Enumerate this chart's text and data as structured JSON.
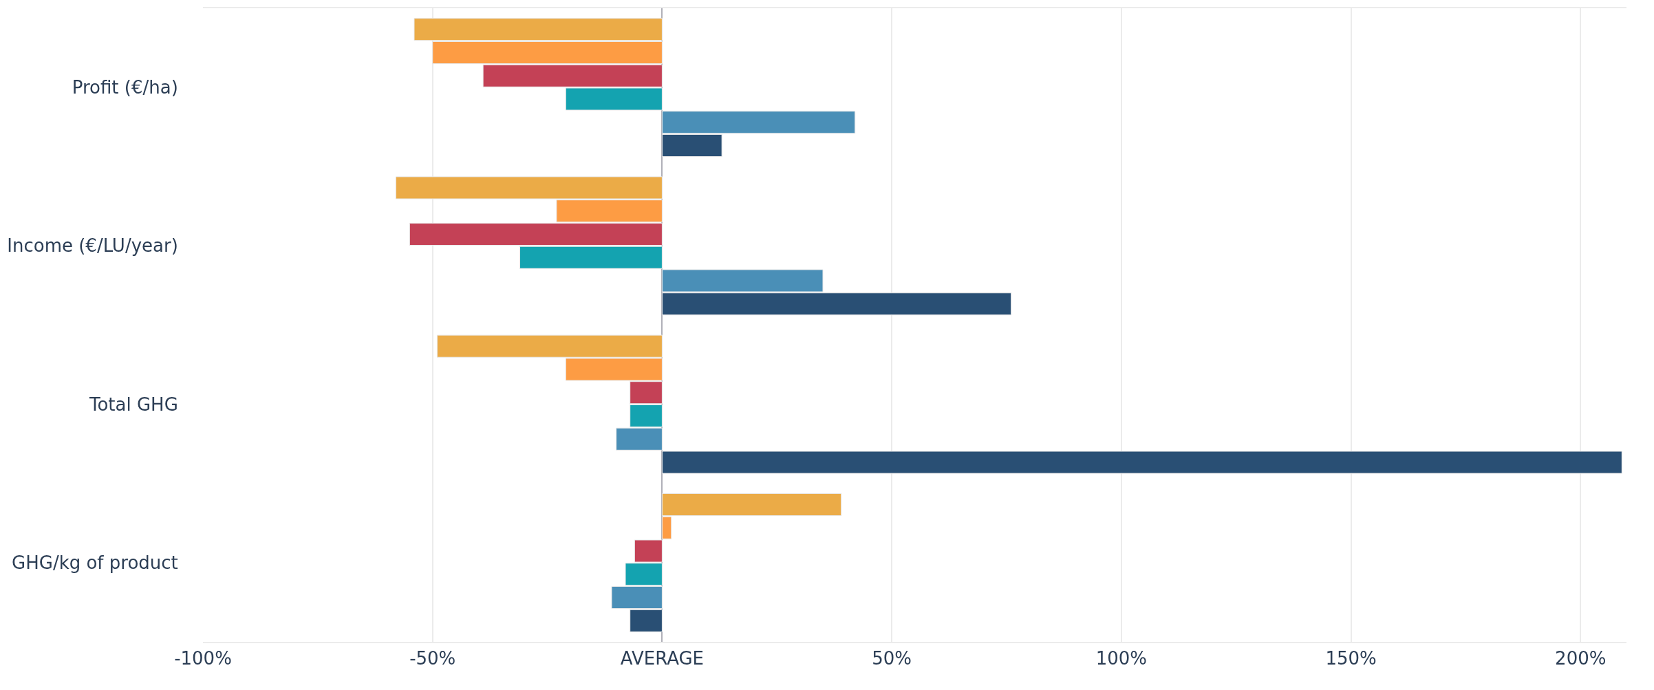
{
  "chart_data": {
    "type": "bar",
    "orientation": "horizontal",
    "categories": [
      "Profit (€/ha)",
      "Income (€/LU/year)",
      "Total GHG",
      "GHG/kg of product"
    ],
    "series": [
      {
        "color": "#ebab47",
        "values": [
          -54,
          -58,
          -49,
          39
        ]
      },
      {
        "color": "#fd9c44",
        "values": [
          -50,
          -23,
          -21,
          2
        ]
      },
      {
        "color": "#c44156",
        "values": [
          -39,
          -55,
          -7,
          -6
        ]
      },
      {
        "color": "#14a3b0",
        "values": [
          -21,
          -31,
          -7,
          -8
        ]
      },
      {
        "color": "#4a8fb7",
        "values": [
          42,
          35,
          -10,
          -11
        ]
      },
      {
        "color": "#294f74",
        "values": [
          13,
          76,
          209,
          -7
        ]
      }
    ],
    "xlim": [
      -100,
      210
    ],
    "xticks": [
      {
        "value": -100,
        "label": "-100%"
      },
      {
        "value": -50,
        "label": "-50%"
      },
      {
        "value": 0,
        "label": "AVERAGE"
      },
      {
        "value": 50,
        "label": "50%"
      },
      {
        "value": 100,
        "label": "100%"
      },
      {
        "value": 150,
        "label": "150%"
      },
      {
        "value": 200,
        "label": "200%"
      }
    ],
    "grid": "x"
  }
}
